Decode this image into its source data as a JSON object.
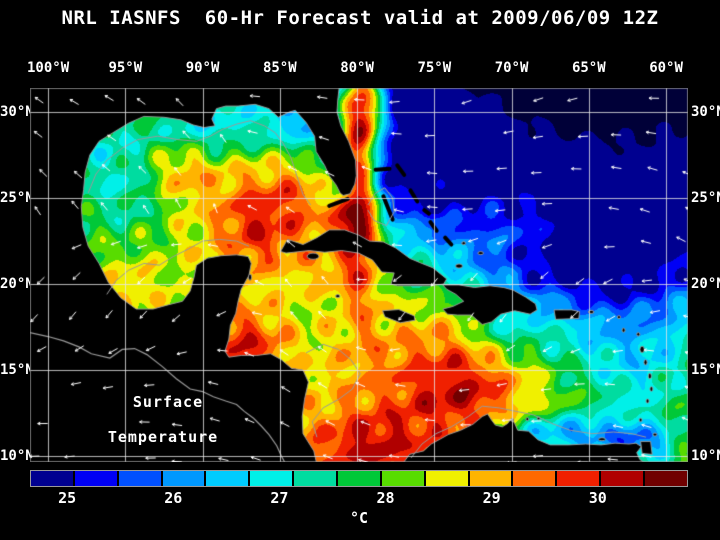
{
  "title": "NRL IASNFS  60-Hr Forecast valid at 2009/06/09 12Z",
  "map": {
    "annotation_line1": "Surface",
    "annotation_line2": "Temperature",
    "longitude_labels": [
      "100°W",
      "95°W",
      "90°W",
      "85°W",
      "80°W",
      "75°W",
      "70°W",
      "65°W",
      "60°W"
    ],
    "latitude_labels": [
      "30°N",
      "25°N",
      "20°N",
      "15°N",
      "10°N"
    ]
  },
  "colorbar": {
    "unit": "°C",
    "tick_labels": [
      "25",
      "26",
      "27",
      "28",
      "29",
      "30"
    ],
    "tick_values": [
      25,
      26,
      27,
      28,
      29,
      30
    ],
    "range_min": 24.65,
    "range_max": 30.85,
    "under_range_color": "#000038",
    "colors": [
      "#000090",
      "#0000f5",
      "#0050ff",
      "#0098ff",
      "#00ccff",
      "#00f0e8",
      "#00dca0",
      "#00c838",
      "#58dc00",
      "#f0f000",
      "#ffb400",
      "#ff6900",
      "#f02000",
      "#b00000",
      "#700000"
    ]
  },
  "style": {
    "land_color": "#000000",
    "coastline_color": "#9a9a9a",
    "grid_color": "#e6e6e6",
    "vector_color": "#ffffff",
    "text_color": "#ffffff",
    "background_color": "#000000"
  }
}
